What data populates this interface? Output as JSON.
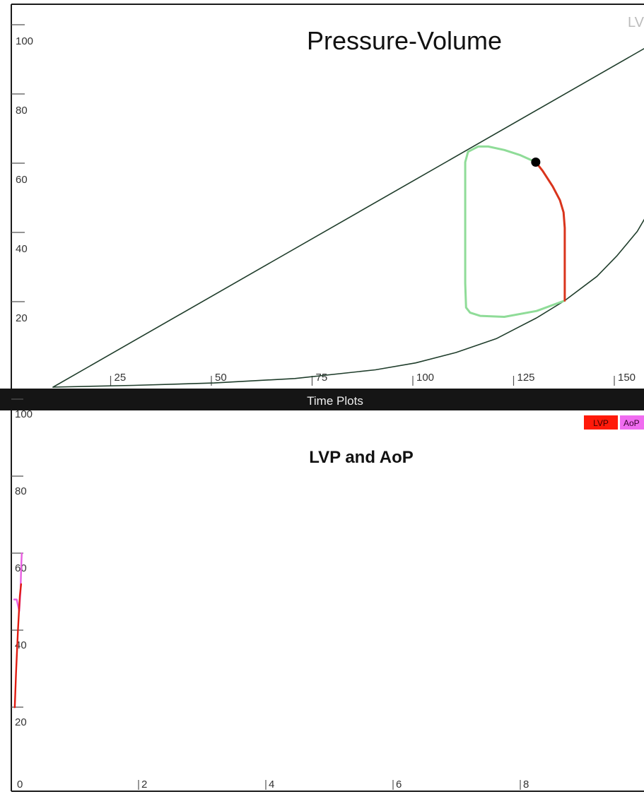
{
  "corner_label": "LV",
  "divider_title": "Time Plots",
  "chart_data": [
    {
      "type": "line",
      "title": "Pressure-Volume",
      "xlim": [
        0,
        160
      ],
      "ylim": [
        0,
        110
      ],
      "x_ticks": [
        "25",
        "50",
        "75",
        "100",
        "125",
        "150"
      ],
      "y_ticks": [
        "20",
        "40",
        "60",
        "80",
        "100"
      ],
      "grid": false,
      "colors": {
        "espvr": "#1f3d2b",
        "edpvr": "#1f3d2b",
        "loop": "#8fdc98",
        "ejection": "#d9341c",
        "marker": "#000000"
      },
      "series": [
        {
          "role": "espvr",
          "x": [
            10,
            160
          ],
          "y": [
            0,
            100
          ]
        },
        {
          "role": "edpvr",
          "x": [
            10,
            30,
            50,
            70,
            90,
            100,
            110,
            120,
            125,
            130,
            137,
            145,
            150,
            155,
            160
          ],
          "y": [
            0,
            0.5,
            1.2,
            2.5,
            5,
            7,
            10,
            14,
            17,
            20,
            25,
            32,
            38,
            45,
            55
          ]
        },
        {
          "role": "loop",
          "x": [
            137,
            130,
            122,
            116,
            113.5,
            112.5,
            112.3,
            112.3,
            113,
            115.5,
            118,
            122,
            126,
            129.8
          ],
          "y": [
            25,
            22,
            20.3,
            20.6,
            21.5,
            23,
            30,
            65,
            68,
            69.5,
            69.5,
            68.5,
            67,
            65
          ]
        },
        {
          "role": "ejection",
          "x": [
            129.8,
            131.5,
            134,
            135.8,
            136.7,
            137,
            137
          ],
          "y": [
            65,
            62.5,
            58,
            54,
            50.5,
            46,
            25
          ]
        }
      ],
      "marker_point": {
        "x": 129.8,
        "y": 65
      }
    },
    {
      "type": "line",
      "title": "LVP and AoP",
      "xlim": [
        0,
        10
      ],
      "ylim": [
        0,
        100
      ],
      "x_ticks": [
        "0",
        "2",
        "4",
        "6",
        "8"
      ],
      "y_ticks": [
        "20",
        "40",
        "60",
        "80",
        "100"
      ],
      "grid": false,
      "legend": [
        "LVP",
        "AoP"
      ],
      "legend_placement": "top-right",
      "series": [
        {
          "name": "LVP",
          "color": "#e01c12",
          "x": [
            0.01,
            0.03,
            0.06,
            0.09,
            0.11
          ],
          "y": [
            24,
            33,
            44,
            53,
            56
          ]
        },
        {
          "name": "AoP",
          "color": "#e85ee0",
          "x": [
            0.0,
            0.04,
            0.08,
            0.1,
            0.11,
            0.12
          ],
          "y": [
            52,
            52,
            49,
            54,
            60,
            64
          ]
        }
      ]
    }
  ]
}
